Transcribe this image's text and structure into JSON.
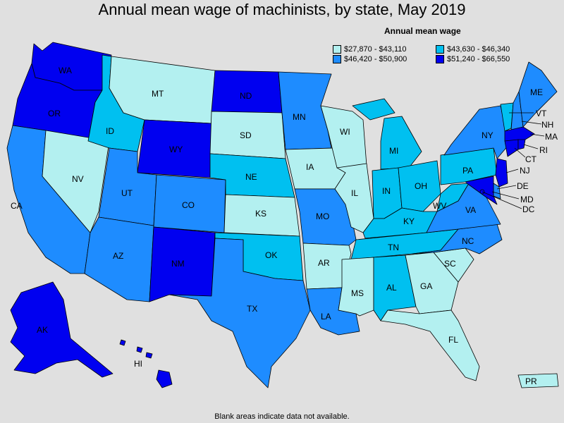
{
  "title": "Annual mean wage of machinists, by state, May 2019",
  "legend": {
    "title": "Annual mean wage",
    "bins": [
      {
        "label": "$27,870 - $43,110",
        "color": "#b3f0f0"
      },
      {
        "label": "$43,630 - $46,340",
        "color": "#00c0f0"
      },
      {
        "label": "$46,420 - $50,900",
        "color": "#1e8cff"
      },
      {
        "label": "$51,240 - $66,550",
        "color": "#0000f0"
      }
    ]
  },
  "footnote": "Blank areas indicate data not available.",
  "states": {
    "WA": {
      "label": "WA",
      "bin": 3
    },
    "OR": {
      "label": "OR",
      "bin": 3
    },
    "CA": {
      "label": "CA",
      "bin": 2
    },
    "NV": {
      "label": "NV",
      "bin": 0
    },
    "ID": {
      "label": "ID",
      "bin": 1
    },
    "MT": {
      "label": "MT",
      "bin": 0
    },
    "WY": {
      "label": "WY",
      "bin": 3
    },
    "UT": {
      "label": "UT",
      "bin": 2
    },
    "AZ": {
      "label": "AZ",
      "bin": 2
    },
    "CO": {
      "label": "CO",
      "bin": 2
    },
    "NM": {
      "label": "NM",
      "bin": 3
    },
    "ND": {
      "label": "ND",
      "bin": 3
    },
    "SD": {
      "label": "SD",
      "bin": 0
    },
    "NE": {
      "label": "NE",
      "bin": 1
    },
    "KS": {
      "label": "KS",
      "bin": 0
    },
    "OK": {
      "label": "OK",
      "bin": 1
    },
    "TX": {
      "label": "TX",
      "bin": 2
    },
    "MN": {
      "label": "MN",
      "bin": 2
    },
    "IA": {
      "label": "IA",
      "bin": 0
    },
    "MO": {
      "label": "MO",
      "bin": 2
    },
    "AR": {
      "label": "AR",
      "bin": 0
    },
    "LA": {
      "label": "LA",
      "bin": 2
    },
    "WI": {
      "label": "WI",
      "bin": 0
    },
    "IL": {
      "label": "IL",
      "bin": 0
    },
    "MI": {
      "label": "MI",
      "bin": 1
    },
    "IN": {
      "label": "IN",
      "bin": 1
    },
    "OH": {
      "label": "OH",
      "bin": 1
    },
    "KY": {
      "label": "KY",
      "bin": 1
    },
    "TN": {
      "label": "TN",
      "bin": 1
    },
    "MS": {
      "label": "MS",
      "bin": 0
    },
    "AL": {
      "label": "AL",
      "bin": 1
    },
    "GA": {
      "label": "GA",
      "bin": 0
    },
    "FL": {
      "label": "FL",
      "bin": 0
    },
    "SC": {
      "label": "SC",
      "bin": 0
    },
    "NC": {
      "label": "NC",
      "bin": 2
    },
    "VA": {
      "label": "VA",
      "bin": 2
    },
    "WV": {
      "label": "WV",
      "bin": 1
    },
    "PA": {
      "label": "PA",
      "bin": 1
    },
    "NY": {
      "label": "NY",
      "bin": 2
    },
    "VT": {
      "label": "VT",
      "bin": 1
    },
    "NH": {
      "label": "NH",
      "bin": 2
    },
    "ME": {
      "label": "ME",
      "bin": 2
    },
    "MA": {
      "label": "MA",
      "bin": 3
    },
    "RI": {
      "label": "RI",
      "bin": 3
    },
    "CT": {
      "label": "CT",
      "bin": 3
    },
    "NJ": {
      "label": "NJ",
      "bin": 3
    },
    "DE": {
      "label": "DE",
      "bin": 2
    },
    "MD": {
      "label": "MD",
      "bin": 3
    },
    "DC": {
      "label": "DC",
      "bin": 3
    },
    "AK": {
      "label": "AK",
      "bin": 3
    },
    "HI": {
      "label": "HI",
      "bin": 3
    },
    "PR": {
      "label": "PR",
      "bin": 0
    }
  }
}
